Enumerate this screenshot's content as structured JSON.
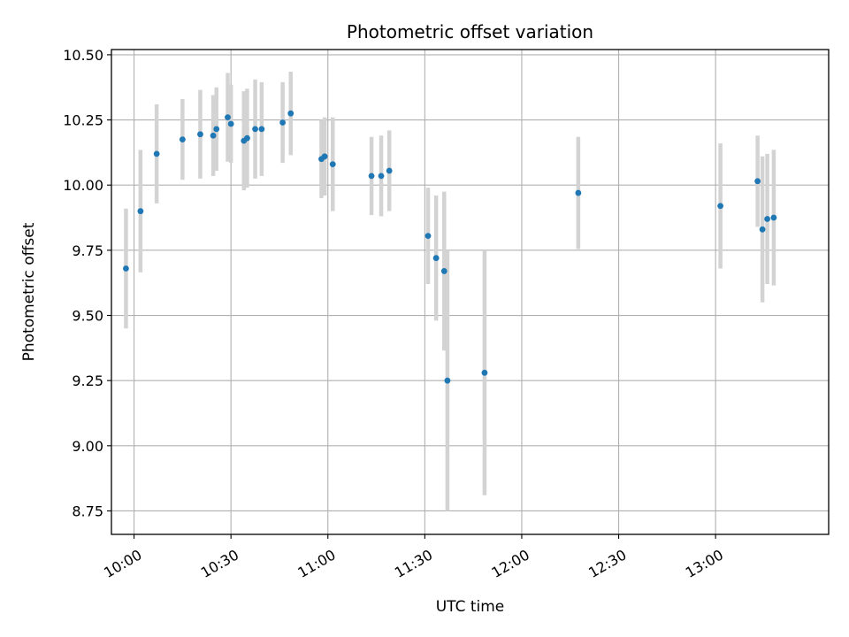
{
  "chart_data": {
    "type": "scatter",
    "title": "Photometric offset variation",
    "xlabel": "UTC time",
    "ylabel": "Photometric offset",
    "x_unit": "UTC time (HH:MM)",
    "xlim": [
      "09:53",
      "13:35"
    ],
    "ylim": [
      8.66,
      10.52
    ],
    "grid": true,
    "yticks": [
      8.75,
      9.0,
      9.25,
      9.5,
      9.75,
      10.0,
      10.25,
      10.5
    ],
    "ytick_labels": [
      "8.75",
      "9.00",
      "9.25",
      "9.50",
      "9.75",
      "10.00",
      "10.25",
      "10.50"
    ],
    "xticks": [
      "10:00",
      "10:30",
      "11:00",
      "11:30",
      "12:00",
      "12:30",
      "13:00"
    ],
    "xtick_labels": [
      "10:00",
      "10:30",
      "11:00",
      "11:30",
      "12:00",
      "12:30",
      "13:00"
    ],
    "marker_color": "#1f77b4",
    "errorbar_color": "#d3d3d3",
    "points": [
      {
        "x": "09:57:30",
        "y": 9.68,
        "err": 0.23
      },
      {
        "x": "10:02:00",
        "y": 9.9,
        "err": 0.235
      },
      {
        "x": "10:07:00",
        "y": 10.12,
        "err": 0.19
      },
      {
        "x": "10:15:00",
        "y": 10.175,
        "err": 0.155
      },
      {
        "x": "10:20:30",
        "y": 10.195,
        "err": 0.17
      },
      {
        "x": "10:24:30",
        "y": 10.19,
        "err": 0.155
      },
      {
        "x": "10:25:30",
        "y": 10.215,
        "err": 0.16
      },
      {
        "x": "10:29:00",
        "y": 10.26,
        "err": 0.17
      },
      {
        "x": "10:30:00",
        "y": 10.235,
        "err": 0.15
      },
      {
        "x": "10:34:00",
        "y": 10.17,
        "err": 0.19
      },
      {
        "x": "10:35:00",
        "y": 10.18,
        "err": 0.19
      },
      {
        "x": "10:37:30",
        "y": 10.215,
        "err": 0.19
      },
      {
        "x": "10:39:30",
        "y": 10.215,
        "err": 0.18
      },
      {
        "x": "10:46:00",
        "y": 10.24,
        "err": 0.155
      },
      {
        "x": "10:48:30",
        "y": 10.275,
        "err": 0.16
      },
      {
        "x": "10:58:00",
        "y": 10.1,
        "err": 0.15
      },
      {
        "x": "10:59:00",
        "y": 10.11,
        "err": 0.15
      },
      {
        "x": "11:01:30",
        "y": 10.08,
        "err": 0.18
      },
      {
        "x": "11:13:30",
        "y": 10.035,
        "err": 0.15
      },
      {
        "x": "11:16:30",
        "y": 10.035,
        "err": 0.155
      },
      {
        "x": "11:19:00",
        "y": 10.055,
        "err": 0.155
      },
      {
        "x": "11:31:00",
        "y": 9.805,
        "err": 0.185
      },
      {
        "x": "11:33:30",
        "y": 9.72,
        "err": 0.24
      },
      {
        "x": "11:36:00",
        "y": 9.67,
        "err": 0.305
      },
      {
        "x": "11:37:00",
        "y": 9.25,
        "err": 0.5
      },
      {
        "x": "11:48:30",
        "y": 9.28,
        "err": 0.47
      },
      {
        "x": "12:17:30",
        "y": 9.97,
        "err": 0.215
      },
      {
        "x": "13:01:30",
        "y": 9.92,
        "err": 0.24
      },
      {
        "x": "13:13:00",
        "y": 10.015,
        "err": 0.175
      },
      {
        "x": "13:14:30",
        "y": 9.83,
        "err": 0.28
      },
      {
        "x": "13:16:00",
        "y": 9.87,
        "err": 0.25
      },
      {
        "x": "13:18:00",
        "y": 9.875,
        "err": 0.26
      }
    ]
  }
}
